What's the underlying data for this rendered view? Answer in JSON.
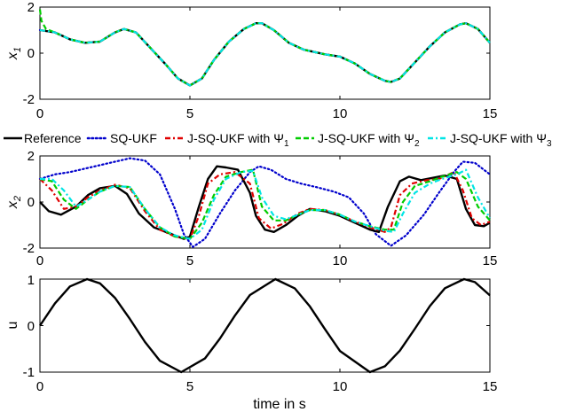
{
  "chart_data": [
    {
      "type": "line",
      "ylabel": "x",
      "ylabel_sub": "1",
      "xlim": [
        0,
        15
      ],
      "ylim": [
        -2,
        2
      ],
      "xticks": [
        0,
        5,
        10,
        15
      ],
      "yticks": [
        -2,
        0,
        2
      ],
      "xtick_labels": [
        "0",
        "5",
        "10",
        "15"
      ],
      "ytick_labels": [
        "-2",
        "0",
        "2"
      ],
      "series": [
        {
          "key": "ref",
          "x": [
            0,
            0.5,
            1,
            1.5,
            2,
            2.5,
            2.8,
            3.2,
            3.7,
            4.2,
            4.6,
            5,
            5.4,
            5.8,
            6.3,
            6.8,
            7.2,
            7.4,
            7.8,
            8.3,
            8.8,
            9.5,
            10,
            10.5,
            11,
            11.5,
            11.7,
            12,
            12.5,
            13,
            13.5,
            14,
            14.2,
            14.6,
            15
          ],
          "y": [
            1,
            0.9,
            0.6,
            0.45,
            0.5,
            0.9,
            1.05,
            0.9,
            0.2,
            -0.5,
            -1.1,
            -1.4,
            -1.1,
            -0.3,
            0.5,
            1.05,
            1.3,
            1.3,
            1,
            0.45,
            0.15,
            -0.05,
            -0.15,
            -0.45,
            -0.9,
            -1.2,
            -1.25,
            -1.1,
            -0.4,
            0.3,
            0.9,
            1.25,
            1.3,
            1.05,
            0.45
          ]
        },
        {
          "key": "sq",
          "x": [
            0,
            0.5,
            1,
            1.5,
            2,
            2.5,
            2.8,
            3.2,
            3.7,
            4.2,
            4.6,
            5,
            5.4,
            5.8,
            6.3,
            6.8,
            7.2,
            7.4,
            7.8,
            8.3,
            8.8,
            9.5,
            10,
            10.5,
            11,
            11.5,
            11.7,
            12,
            12.5,
            13,
            13.5,
            14,
            14.2,
            14.6,
            15
          ],
          "y": [
            1,
            0.9,
            0.6,
            0.45,
            0.5,
            0.9,
            1.05,
            0.9,
            0.2,
            -0.5,
            -1.1,
            -1.4,
            -1.1,
            -0.3,
            0.5,
            1.05,
            1.3,
            1.3,
            1,
            0.45,
            0.15,
            -0.05,
            -0.15,
            -0.45,
            -0.9,
            -1.2,
            -1.25,
            -1.1,
            -0.4,
            0.3,
            0.9,
            1.25,
            1.3,
            1.05,
            0.45
          ]
        },
        {
          "key": "j1",
          "x": [
            0,
            0.5,
            1,
            1.5,
            2,
            2.5,
            2.8,
            3.2,
            3.7,
            4.2,
            4.6,
            5,
            5.4,
            5.8,
            6.3,
            6.8,
            7.2,
            7.4,
            7.8,
            8.3,
            8.8,
            9.5,
            10,
            10.5,
            11,
            11.5,
            11.7,
            12,
            12.5,
            13,
            13.5,
            14,
            14.2,
            14.6,
            15
          ],
          "y": [
            1,
            0.9,
            0.6,
            0.45,
            0.5,
            0.9,
            1.05,
            0.9,
            0.2,
            -0.5,
            -1.1,
            -1.4,
            -1.1,
            -0.3,
            0.5,
            1.05,
            1.3,
            1.3,
            1,
            0.45,
            0.15,
            -0.05,
            -0.15,
            -0.45,
            -0.9,
            -1.2,
            -1.25,
            -1.1,
            -0.4,
            0.3,
            0.9,
            1.25,
            1.3,
            1.05,
            0.45
          ]
        },
        {
          "key": "j2",
          "x": [
            0,
            0.05,
            0.2,
            0.5,
            1,
            1.5,
            2,
            2.5,
            2.8,
            3.2,
            3.7,
            4.2,
            4.6,
            5,
            5.4,
            5.8,
            6.3,
            6.8,
            7.2,
            7.4,
            7.8,
            8.3,
            8.8,
            9.5,
            10,
            10.5,
            11,
            11.5,
            11.7,
            12,
            12.5,
            13,
            13.5,
            14,
            14.2,
            14.6,
            15
          ],
          "y": [
            1.9,
            1.4,
            1.05,
            0.9,
            0.6,
            0.45,
            0.5,
            0.9,
            1.05,
            0.9,
            0.2,
            -0.5,
            -1.1,
            -1.4,
            -1.1,
            -0.3,
            0.5,
            1.05,
            1.3,
            1.3,
            1,
            0.45,
            0.15,
            -0.05,
            -0.15,
            -0.45,
            -0.9,
            -1.2,
            -1.25,
            -1.1,
            -0.4,
            0.3,
            0.9,
            1.25,
            1.3,
            1.05,
            0.45
          ]
        },
        {
          "key": "j3",
          "x": [
            0,
            0.5,
            1,
            1.5,
            2,
            2.5,
            2.8,
            3.2,
            3.7,
            4.2,
            4.6,
            5,
            5.4,
            5.8,
            6.3,
            6.8,
            7.2,
            7.4,
            7.8,
            8.3,
            8.8,
            9.5,
            10,
            10.5,
            11,
            11.5,
            11.7,
            12,
            12.5,
            13,
            13.5,
            14,
            14.2,
            14.6,
            15
          ],
          "y": [
            1,
            0.9,
            0.6,
            0.45,
            0.5,
            0.9,
            1.05,
            0.9,
            0.2,
            -0.5,
            -1.1,
            -1.4,
            -1.1,
            -0.3,
            0.5,
            1.05,
            1.3,
            1.3,
            1,
            0.45,
            0.15,
            -0.05,
            -0.15,
            -0.45,
            -0.9,
            -1.2,
            -1.25,
            -1.1,
            -0.4,
            0.3,
            0.9,
            1.25,
            1.3,
            1.05,
            0.45
          ]
        }
      ]
    },
    {
      "type": "line",
      "ylabel": "x",
      "ylabel_sub": "2",
      "xlim": [
        0,
        15
      ],
      "ylim": [
        -2,
        2
      ],
      "xticks": [
        0,
        5,
        10,
        15
      ],
      "yticks": [
        -2,
        0,
        2
      ],
      "xtick_labels": [
        "0",
        "5",
        "10",
        "15"
      ],
      "ytick_labels": [
        "-2",
        "0",
        "2"
      ],
      "series": [
        {
          "key": "ref",
          "x": [
            0,
            0.3,
            0.7,
            1.2,
            1.6,
            2,
            2.5,
            2.9,
            3.3,
            3.8,
            4.3,
            4.8,
            5,
            5.3,
            5.6,
            5.9,
            6.2,
            6.6,
            7,
            7.2,
            7.5,
            7.8,
            8.2,
            8.6,
            9,
            9.5,
            10,
            10.5,
            11,
            11.3,
            11.6,
            12,
            12.3,
            12.7,
            13.1,
            13.5,
            13.9,
            14.2,
            14.5,
            14.8,
            15
          ],
          "y": [
            0,
            -0.4,
            -0.55,
            -0.2,
            0.3,
            0.6,
            0.7,
            0.35,
            -0.5,
            -1.1,
            -1.35,
            -1.6,
            -1.5,
            -0.2,
            1.0,
            1.55,
            1.5,
            1.4,
            0.4,
            -0.6,
            -1.2,
            -1.3,
            -1,
            -0.6,
            -0.3,
            -0.4,
            -0.6,
            -0.9,
            -1.2,
            -1.3,
            -0.2,
            0.9,
            1.1,
            0.95,
            1.05,
            1.15,
            1.0,
            -0.3,
            -1.0,
            -1.05,
            -0.9
          ]
        },
        {
          "key": "sq",
          "x": [
            0,
            0.5,
            1,
            1.5,
            2,
            2.5,
            3,
            3.5,
            4,
            4.5,
            4.8,
            5.1,
            5.5,
            6,
            6.5,
            7,
            7.3,
            7.7,
            8.2,
            8.7,
            9.2,
            9.8,
            10.3,
            10.8,
            11.2,
            11.7,
            12.2,
            12.8,
            13.3,
            13.8,
            14.1,
            14.5,
            15
          ],
          "y": [
            1.0,
            1.2,
            1.3,
            1.45,
            1.6,
            1.75,
            1.9,
            1.8,
            1.2,
            -0.3,
            -1.4,
            -1.95,
            -1.6,
            -0.5,
            0.5,
            1.3,
            1.55,
            1.4,
            1.0,
            0.8,
            0.65,
            0.45,
            0.2,
            -0.5,
            -1.4,
            -1.9,
            -1.45,
            -0.55,
            0.4,
            1.3,
            1.75,
            1.7,
            1.2
          ]
        },
        {
          "key": "j1",
          "x": [
            0,
            0.4,
            0.8,
            1.2,
            1.6,
            2,
            2.5,
            3,
            3.5,
            4,
            4.5,
            5,
            5.3,
            5.6,
            6,
            6.5,
            7,
            7.3,
            7.7,
            8.1,
            8.6,
            9,
            9.5,
            10,
            10.5,
            11,
            11.5,
            11.7,
            12,
            12.4,
            12.9,
            13.3,
            13.8,
            14.1,
            14.4,
            14.7,
            15
          ],
          "y": [
            1.0,
            0.5,
            -0.3,
            -0.2,
            0.2,
            0.5,
            0.75,
            0.6,
            -0.4,
            -1.2,
            -1.5,
            -1.6,
            -0.6,
            0.8,
            1.2,
            1.3,
            0.8,
            -0.7,
            -1.15,
            -0.95,
            -0.5,
            -0.3,
            -0.35,
            -0.55,
            -0.85,
            -1.1,
            -1.3,
            -1.1,
            0.3,
            0.8,
            0.95,
            1.0,
            1.3,
            0.5,
            -0.7,
            -1.0,
            -0.85
          ]
        },
        {
          "key": "j2",
          "x": [
            0,
            0.4,
            0.8,
            1.2,
            1.6,
            2,
            2.5,
            3,
            3.5,
            4,
            4.5,
            5,
            5.4,
            5.8,
            6.2,
            6.7,
            7.1,
            7.4,
            7.8,
            8.2,
            8.6,
            9,
            9.5,
            10,
            10.5,
            11,
            11.5,
            11.8,
            12.1,
            12.5,
            13,
            13.4,
            13.9,
            14.2,
            14.6,
            15
          ],
          "y": [
            1.0,
            0.9,
            0.1,
            -0.3,
            0.1,
            0.45,
            0.7,
            0.65,
            -0.3,
            -1.1,
            -1.5,
            -1.6,
            -0.9,
            0.3,
            1.1,
            1.3,
            1.4,
            -0.2,
            -0.8,
            -0.8,
            -0.55,
            -0.35,
            -0.35,
            -0.55,
            -0.85,
            -1.05,
            -1.2,
            -1.2,
            0.0,
            0.7,
            0.9,
            1.1,
            1.3,
            1.0,
            -0.2,
            -0.8
          ]
        },
        {
          "key": "j3",
          "x": [
            0,
            0.4,
            0.8,
            1.2,
            1.6,
            2,
            2.5,
            3,
            3.5,
            4,
            4.5,
            5,
            5.4,
            5.8,
            6.2,
            6.7,
            7.1,
            7.4,
            7.8,
            8.2,
            8.6,
            9,
            9.5,
            10,
            10.5,
            11,
            11.5,
            11.8,
            12.1,
            12.5,
            13,
            13.4,
            13.9,
            14.2,
            14.6,
            15
          ],
          "y": [
            1.0,
            1.0,
            0.5,
            -0.2,
            0.1,
            0.45,
            0.7,
            0.65,
            -0.3,
            -1.1,
            -1.45,
            -1.6,
            -1.2,
            0.1,
            1.0,
            1.3,
            1.35,
            0.2,
            -0.6,
            -0.75,
            -0.55,
            -0.35,
            -0.35,
            -0.55,
            -0.85,
            -1.05,
            -1.25,
            -1.3,
            -0.5,
            0.4,
            0.8,
            1.0,
            1.2,
            1.4,
            0.2,
            -0.7
          ]
        }
      ]
    },
    {
      "type": "line",
      "ylabel": "u",
      "xlabel": "time in s",
      "xlim": [
        0,
        15
      ],
      "ylim": [
        -1,
        1
      ],
      "xticks": [
        0,
        5,
        10,
        15
      ],
      "yticks": [
        -1,
        0,
        1
      ],
      "xtick_labels": [
        "0",
        "5",
        "10",
        "15"
      ],
      "ytick_labels": [
        "-1",
        "0",
        "1"
      ],
      "series": [
        {
          "key": "ref",
          "x": [
            0,
            0.5,
            1,
            1.57,
            2,
            2.5,
            3,
            3.5,
            4,
            4.71,
            5.5,
            6,
            6.5,
            7,
            7.85,
            8.5,
            9,
            9.5,
            10,
            11,
            11.5,
            12,
            12.5,
            13,
            13.5,
            14.14,
            14.5,
            15
          ],
          "y": [
            0,
            0.479,
            0.841,
            1,
            0.909,
            0.598,
            0.141,
            -0.351,
            -0.757,
            -1,
            -0.706,
            -0.279,
            0.215,
            0.657,
            1,
            0.798,
            0.412,
            -0.075,
            -0.544,
            -1,
            -0.875,
            -0.537,
            -0.066,
            0.42,
            0.804,
            1,
            0.935,
            0.65
          ]
        }
      ]
    }
  ],
  "legend": {
    "entries": [
      {
        "key": "ref",
        "label": "Reference",
        "color": "#000000",
        "dash": "solid"
      },
      {
        "key": "sq",
        "label": "SQ-UKF",
        "color": "#0000cc",
        "dash": "dot"
      },
      {
        "key": "j1",
        "label": "J-SQ-UKF with Ψ",
        "sub": "1",
        "color": "#e00000",
        "dash": "dashdot"
      },
      {
        "key": "j2",
        "label": "J-SQ-UKF with Ψ",
        "sub": "2",
        "color": "#00cc00",
        "dash": "dash"
      },
      {
        "key": "j3",
        "label": "J-SQ-UKF with Ψ",
        "sub": "3",
        "color": "#00e5e5",
        "dash": "dashdot"
      }
    ]
  }
}
